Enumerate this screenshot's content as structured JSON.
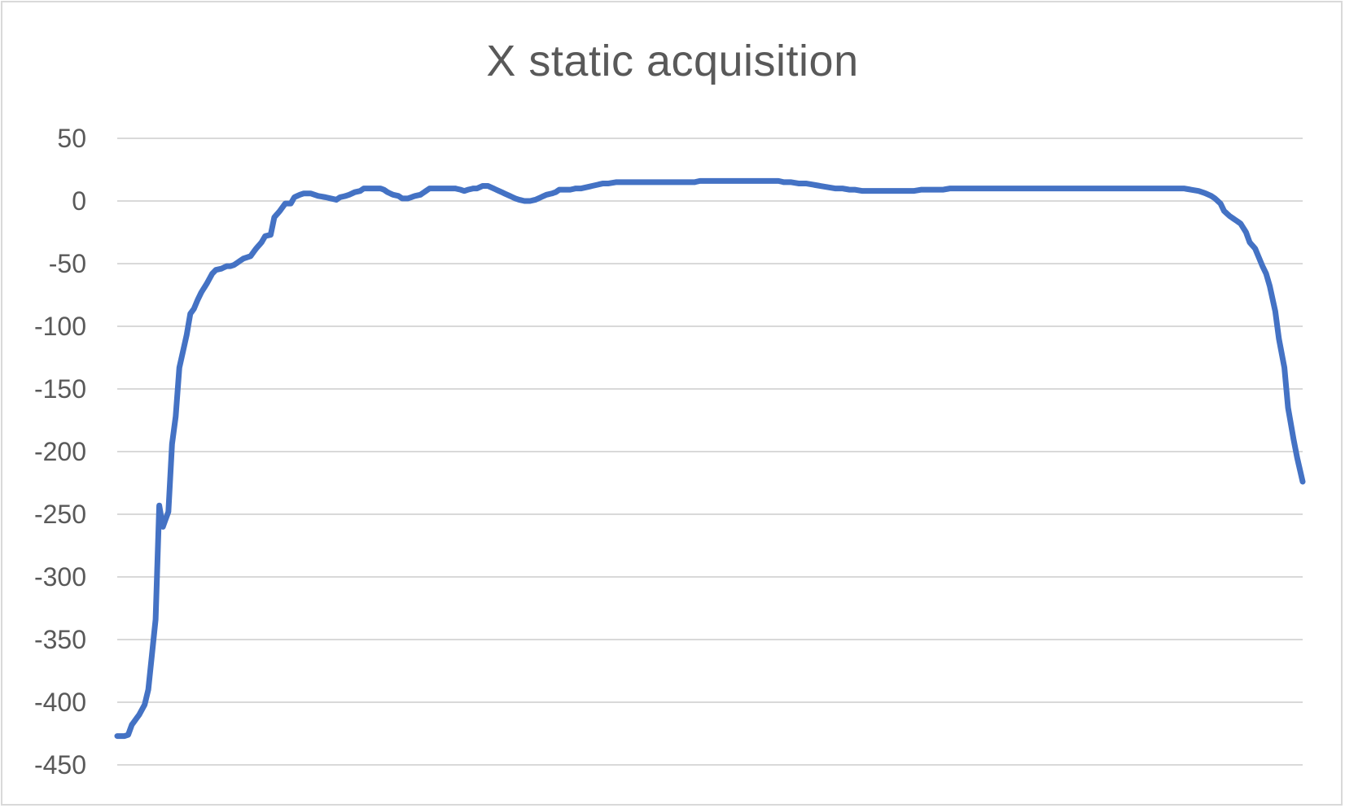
{
  "chart_data": {
    "type": "line",
    "title": "X static acquisition",
    "xlabel": "",
    "ylabel": "",
    "ylim": [
      -450,
      50
    ],
    "yticks": [
      50,
      0,
      -50,
      -100,
      -150,
      -200,
      -250,
      -300,
      -350,
      -400,
      -450
    ],
    "grid": true,
    "legend": "none",
    "line_color": "#4472c4",
    "grid_color": "#d9d9d9",
    "x": [
      1,
      2,
      3,
      4,
      5,
      6,
      7,
      8,
      9,
      10,
      11,
      12,
      13,
      14,
      15,
      16,
      17,
      18,
      19,
      20,
      21,
      22,
      23,
      24,
      25,
      26,
      27,
      28,
      29,
      30,
      31,
      32,
      33,
      34,
      35,
      36,
      37,
      38,
      39,
      40,
      41,
      42,
      43,
      44,
      45,
      46,
      47,
      48,
      49,
      50,
      51,
      52,
      53,
      54,
      55,
      56,
      57,
      58,
      59,
      60,
      61,
      62,
      63,
      64,
      65,
      66,
      67,
      68,
      69,
      70,
      71,
      72,
      73,
      74,
      75,
      76,
      77,
      78,
      79,
      80,
      81,
      82,
      83,
      84,
      85,
      86,
      87,
      88,
      89,
      90,
      91,
      92,
      93,
      94,
      95,
      96,
      97,
      98,
      99,
      100,
      101,
      102,
      103,
      104,
      105,
      106,
      107,
      108,
      109,
      110,
      111,
      112,
      113,
      114,
      115,
      116,
      117,
      118,
      119,
      120,
      121,
      122,
      123,
      124,
      125,
      126,
      127,
      128,
      129,
      130,
      131,
      132,
      133,
      134,
      135,
      136,
      137,
      138,
      139,
      140,
      141,
      142,
      143,
      144,
      145,
      146,
      147,
      148,
      149,
      150,
      151,
      152,
      153,
      154,
      155,
      156,
      157,
      158,
      159,
      160,
      161,
      162,
      163,
      164,
      165,
      166,
      167,
      168,
      169,
      170,
      171,
      172,
      173,
      174,
      175,
      176,
      177,
      178,
      179,
      180,
      181,
      182,
      183,
      184,
      185,
      186,
      187,
      188,
      189,
      190,
      191,
      192,
      193,
      194,
      195,
      196,
      197,
      198,
      199,
      200,
      201,
      202,
      203,
      204,
      205,
      206,
      207,
      208,
      209,
      210,
      211,
      212,
      213,
      214,
      215,
      216,
      217,
      218,
      219,
      220,
      221,
      222,
      223,
      224,
      225,
      226,
      227,
      228,
      229,
      230,
      231,
      232,
      233,
      234,
      235,
      236,
      237,
      238,
      239,
      240,
      241,
      242,
      243,
      244,
      245,
      246,
      247,
      248,
      249,
      250,
      251,
      252,
      253,
      254,
      255,
      256,
      257,
      258,
      259,
      260,
      261,
      262,
      263,
      264,
      265,
      266,
      267,
      268,
      269,
      270,
      271,
      272,
      273,
      274,
      275,
      276,
      277,
      278,
      279,
      280,
      281,
      282,
      283,
      284,
      285,
      286,
      287,
      288,
      289,
      290,
      291,
      292,
      293,
      294,
      295,
      296,
      297,
      298,
      299,
      300,
      301,
      302,
      303,
      304,
      305,
      306,
      307,
      308,
      309,
      310,
      311,
      312,
      313,
      314,
      315,
      316,
      317,
      318,
      319,
      320,
      321,
      322,
      323,
      324,
      325,
      326,
      327,
      328,
      329,
      330,
      331,
      332,
      333,
      334,
      335,
      336,
      337,
      338,
      339,
      340,
      341,
      342,
      343,
      344,
      345,
      346,
      347,
      348,
      349,
      350,
      351,
      352,
      353,
      354,
      355,
      356,
      357,
      358,
      359,
      360,
      361,
      362,
      363,
      364,
      365,
      366,
      367,
      368,
      369,
      370,
      371,
      372,
      373,
      374,
      375,
      376,
      377,
      378,
      379,
      380,
      381,
      382,
      383,
      384,
      385,
      386,
      387,
      388,
      389,
      390,
      391,
      392,
      393,
      394,
      395,
      396,
      397,
      398,
      399,
      400,
      401,
      402,
      403,
      404,
      405,
      406,
      407,
      408,
      409,
      410,
      411,
      412,
      413,
      414,
      415,
      416,
      417,
      418,
      419,
      420,
      421,
      422,
      423,
      424,
      425,
      426,
      427,
      428,
      429,
      430,
      431,
      432,
      433,
      434,
      435,
      436,
      437,
      438,
      439,
      440,
      441,
      442,
      443,
      444,
      445,
      446,
      447,
      448,
      449,
      450,
      451,
      452,
      453,
      454,
      455,
      456,
      457,
      458,
      459,
      460,
      461,
      462,
      463,
      464,
      465,
      466,
      467,
      468,
      469,
      470,
      471,
      472,
      473,
      474,
      475,
      476,
      477,
      478,
      479,
      480,
      481,
      482,
      483,
      484,
      485,
      486,
      487,
      488,
      489,
      490,
      491,
      492,
      493,
      494,
      495,
      496,
      497,
      498,
      499,
      500,
      501,
      502,
      503,
      504,
      505,
      506,
      507,
      508,
      509,
      510,
      511,
      512,
      513,
      514,
      515,
      516,
      517,
      518,
      519,
      520,
      521,
      522,
      523,
      524,
      525,
      526,
      527,
      528,
      529,
      530,
      531,
      532,
      533,
      534,
      535,
      536,
      537,
      538,
      539,
      540,
      541,
      542,
      543,
      544,
      545,
      546,
      547,
      548,
      549,
      550,
      551,
      552,
      553,
      554,
      555,
      556,
      557,
      558,
      559,
      560,
      561,
      562,
      563,
      564,
      565,
      566,
      567,
      568,
      569,
      570,
      571,
      572,
      573,
      574,
      575,
      576,
      577,
      578,
      579,
      580,
      581,
      582,
      583,
      584,
      585,
      586,
      587,
      588,
      589,
      590,
      591,
      592,
      593,
      594,
      595,
      596,
      597,
      598,
      599,
      600,
      601,
      602,
      603,
      604,
      605,
      606,
      607,
      608,
      609,
      610,
      611,
      612,
      613,
      614,
      615,
      616,
      617,
      618,
      619,
      620,
      621,
      622,
      623,
      624,
      625,
      626,
      627,
      628,
      629,
      630,
      631,
      632,
      633,
      634,
      635,
      636,
      637,
      638,
      639,
      640,
      641,
      642,
      643,
      644,
      645,
      646,
      647,
      648,
      649,
      650
    ],
    "y_anchor_points": [
      [
        1,
        -427
      ],
      [
        5,
        -427
      ],
      [
        7,
        -426
      ],
      [
        9,
        -418
      ],
      [
        13,
        -410
      ],
      [
        16,
        -402
      ],
      [
        18,
        -390
      ],
      [
        20,
        -362
      ],
      [
        22,
        -334
      ],
      [
        24,
        -243
      ],
      [
        26,
        -260
      ],
      [
        29,
        -248
      ],
      [
        31,
        -194
      ],
      [
        33,
        -172
      ],
      [
        35,
        -133
      ],
      [
        37,
        -120
      ],
      [
        39,
        -107
      ],
      [
        41,
        -90
      ],
      [
        43,
        -86
      ],
      [
        45,
        -79
      ],
      [
        47,
        -73
      ],
      [
        50,
        -66
      ],
      [
        53,
        -58
      ],
      [
        55,
        -55
      ],
      [
        58,
        -54
      ],
      [
        61,
        -52
      ],
      [
        63,
        -52
      ],
      [
        65,
        -51
      ],
      [
        68,
        -48
      ],
      [
        70,
        -46
      ],
      [
        74,
        -44
      ],
      [
        77,
        -38
      ],
      [
        80,
        -33
      ],
      [
        82,
        -28
      ],
      [
        85,
        -27
      ],
      [
        87,
        -13
      ],
      [
        90,
        -8
      ],
      [
        93,
        -2
      ],
      [
        96,
        -2
      ],
      [
        98,
        3
      ],
      [
        101,
        5
      ],
      [
        103,
        6
      ],
      [
        107,
        6
      ],
      [
        109,
        5
      ],
      [
        111,
        4
      ],
      [
        115,
        3
      ],
      [
        118,
        2
      ],
      [
        121,
        1
      ],
      [
        123,
        3
      ],
      [
        126,
        4
      ],
      [
        128,
        5
      ],
      [
        131,
        7
      ],
      [
        134,
        8
      ],
      [
        136,
        10
      ],
      [
        141,
        10
      ],
      [
        145,
        10
      ],
      [
        147,
        9
      ],
      [
        149,
        7
      ],
      [
        152,
        5
      ],
      [
        155,
        4
      ],
      [
        157,
        2
      ],
      [
        160,
        2
      ],
      [
        162,
        3
      ],
      [
        164,
        4
      ],
      [
        167,
        5
      ],
      [
        169,
        7
      ],
      [
        172,
        10
      ],
      [
        177,
        10
      ],
      [
        182,
        10
      ],
      [
        186,
        10
      ],
      [
        189,
        9
      ],
      [
        191,
        8
      ],
      [
        193,
        9
      ],
      [
        196,
        10
      ],
      [
        198,
        10
      ],
      [
        201,
        12
      ],
      [
        204,
        12
      ],
      [
        207,
        10
      ],
      [
        210,
        8
      ],
      [
        213,
        6
      ],
      [
        216,
        4
      ],
      [
        219,
        2
      ],
      [
        221,
        1
      ],
      [
        224,
        0
      ],
      [
        227,
        0
      ],
      [
        230,
        1
      ],
      [
        233,
        3
      ],
      [
        236,
        5
      ],
      [
        239,
        6
      ],
      [
        241,
        7
      ],
      [
        243,
        9
      ],
      [
        246,
        9
      ],
      [
        249,
        9
      ],
      [
        252,
        10
      ],
      [
        255,
        10
      ],
      [
        258,
        11
      ],
      [
        261,
        12
      ],
      [
        264,
        13
      ],
      [
        267,
        14
      ],
      [
        270,
        14
      ],
      [
        274,
        15
      ],
      [
        277,
        15
      ],
      [
        280,
        15
      ],
      [
        284,
        15
      ],
      [
        287,
        15
      ],
      [
        290,
        15
      ],
      [
        294,
        15
      ],
      [
        297,
        15
      ],
      [
        300,
        15
      ],
      [
        304,
        15
      ],
      [
        307,
        15
      ],
      [
        310,
        15
      ],
      [
        313,
        15
      ],
      [
        317,
        15
      ],
      [
        320,
        16
      ],
      [
        324,
        16
      ],
      [
        327,
        16
      ],
      [
        331,
        16
      ],
      [
        334,
        16
      ],
      [
        338,
        16
      ],
      [
        341,
        16
      ],
      [
        345,
        16
      ],
      [
        348,
        16
      ],
      [
        352,
        16
      ],
      [
        356,
        16
      ],
      [
        359,
        16
      ],
      [
        363,
        16
      ],
      [
        366,
        15
      ],
      [
        370,
        15
      ],
      [
        374,
        14
      ],
      [
        378,
        14
      ],
      [
        382,
        13
      ],
      [
        386,
        12
      ],
      [
        390,
        11
      ],
      [
        394,
        10
      ],
      [
        398,
        10
      ],
      [
        402,
        9
      ],
      [
        405,
        9
      ],
      [
        409,
        8
      ],
      [
        413,
        8
      ],
      [
        417,
        8
      ],
      [
        421,
        8
      ],
      [
        425,
        8
      ],
      [
        429,
        8
      ],
      [
        433,
        8
      ],
      [
        437,
        8
      ],
      [
        441,
        9
      ],
      [
        445,
        9
      ],
      [
        449,
        9
      ],
      [
        453,
        9
      ],
      [
        457,
        10
      ],
      [
        461,
        10
      ],
      [
        465,
        10
      ],
      [
        469,
        10
      ],
      [
        473,
        10
      ],
      [
        477,
        10
      ],
      [
        481,
        10
      ],
      [
        485,
        10
      ],
      [
        489,
        10
      ],
      [
        493,
        10
      ],
      [
        497,
        10
      ],
      [
        501,
        10
      ],
      [
        505,
        10
      ],
      [
        509,
        10
      ],
      [
        513,
        10
      ],
      [
        517,
        10
      ],
      [
        521,
        10
      ],
      [
        525,
        10
      ],
      [
        529,
        10
      ],
      [
        533,
        10
      ],
      [
        537,
        10
      ],
      [
        541,
        10
      ],
      [
        545,
        10
      ],
      [
        549,
        10
      ],
      [
        553,
        10
      ],
      [
        557,
        10
      ],
      [
        561,
        10
      ],
      [
        565,
        10
      ],
      [
        569,
        10
      ],
      [
        573,
        10
      ],
      [
        577,
        10
      ],
      [
        581,
        10
      ],
      [
        585,
        10
      ],
      [
        589,
        9
      ],
      [
        593,
        8
      ],
      [
        597,
        6
      ],
      [
        600,
        4
      ],
      [
        602,
        2
      ],
      [
        605,
        -2
      ],
      [
        607,
        -8
      ],
      [
        610,
        -12
      ],
      [
        613,
        -15
      ],
      [
        616,
        -18
      ],
      [
        619,
        -25
      ],
      [
        621,
        -33
      ],
      [
        624,
        -38
      ],
      [
        626,
        -45
      ],
      [
        628,
        -52
      ],
      [
        630,
        -58
      ],
      [
        632,
        -68
      ],
      [
        635,
        -88
      ],
      [
        637,
        -110
      ],
      [
        640,
        -133
      ],
      [
        642,
        -165
      ],
      [
        645,
        -190
      ],
      [
        647,
        -205
      ],
      [
        650,
        -224
      ]
    ]
  }
}
